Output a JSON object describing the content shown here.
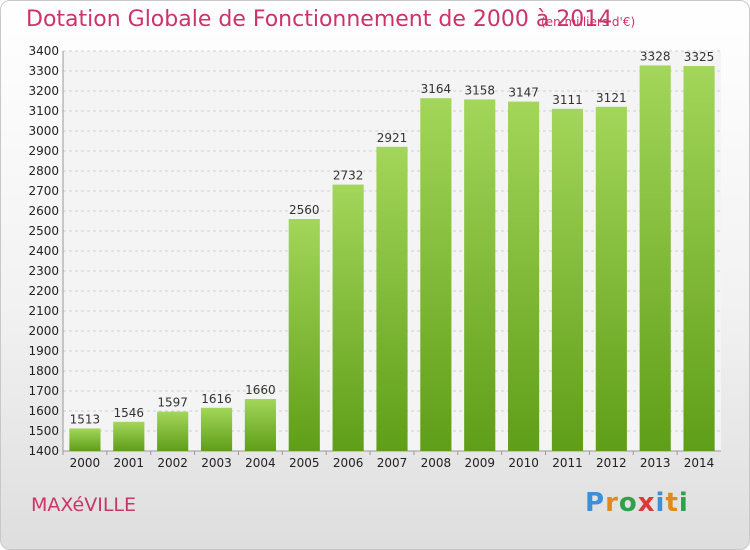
{
  "header": {
    "title": "Dotation Globale de Fonctionnement de 2000 à 2014",
    "subtitle": "(en milliers d'€)"
  },
  "footer": {
    "commune": "MAXéVILLE",
    "logo": "Proxiti"
  },
  "colors": {
    "title": "#cc3366",
    "bar_top": "#a3d65a",
    "bar_bottom": "#5f9e18",
    "grid": "#cfcfcf"
  },
  "chart_data": {
    "type": "bar",
    "title": "Dotation Globale de Fonctionnement de 2000 à 2014",
    "subtitle": "(en milliers d'€)",
    "xlabel": "",
    "ylabel": "",
    "categories": [
      "2000",
      "2001",
      "2002",
      "2003",
      "2004",
      "2005",
      "2006",
      "2007",
      "2008",
      "2009",
      "2010",
      "2011",
      "2012",
      "2013",
      "2014"
    ],
    "values": [
      1513,
      1546,
      1597,
      1616,
      1660,
      2560,
      2732,
      2921,
      3164,
      3158,
      3147,
      3111,
      3121,
      3328,
      3325
    ],
    "ylim": [
      1400,
      3400
    ],
    "ytick_step": 100,
    "grid": true,
    "legend": "none"
  }
}
